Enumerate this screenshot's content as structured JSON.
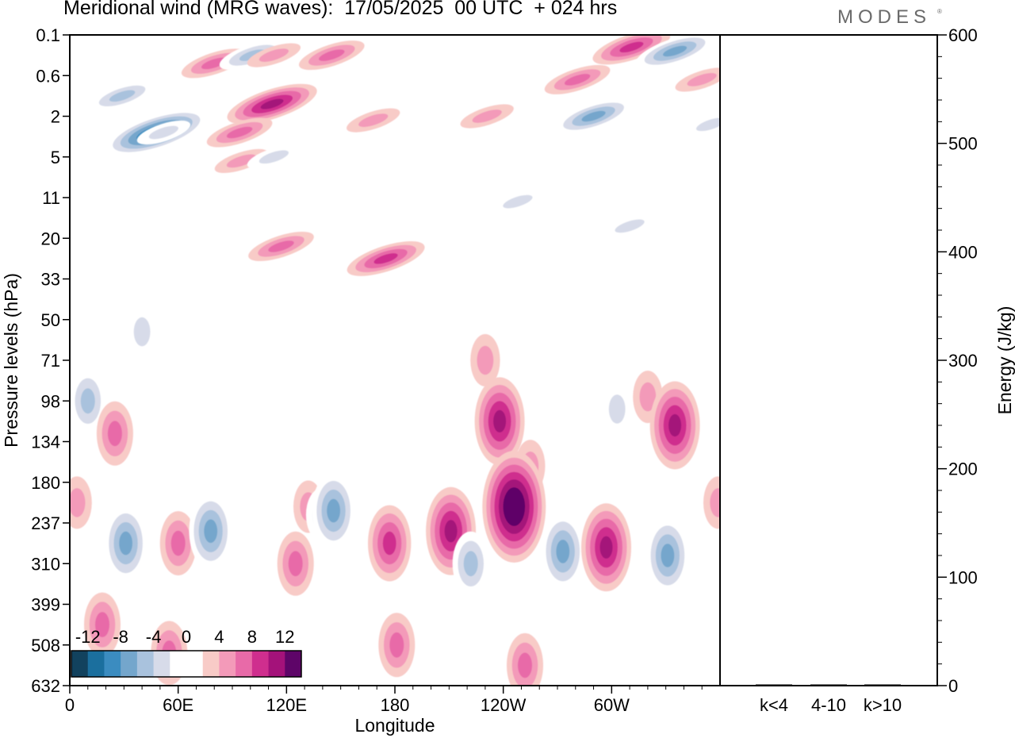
{
  "title": "Meridional wind (MRG waves):  17/05/2025  00 UTC  + 024 hrs",
  "brand": "MODES",
  "brand_mark": "®",
  "chart_data": [
    {
      "type": "heatmap",
      "title": "Meridional wind (MRG waves):  17/05/2025  00 UTC  + 024 hrs",
      "xlabel": "Longitude",
      "ylabel": "Pressure levels (hPa)",
      "x_ticks": [
        "0",
        "60E",
        "120E",
        "180",
        "120W",
        "60W"
      ],
      "x_tick_degrees": [
        0,
        60,
        120,
        180,
        240,
        300
      ],
      "xlim": [
        0,
        360
      ],
      "y_ticks": [
        "0.1",
        "0.6",
        "2",
        "5",
        "11",
        "20",
        "33",
        "50",
        "71",
        "98",
        "134",
        "180",
        "237",
        "310",
        "399",
        "508",
        "632"
      ],
      "colorbar": {
        "tick_labels": [
          "-12",
          "-8",
          "-4",
          "0",
          "4",
          "8",
          "12"
        ],
        "colors": [
          "#12425e",
          "#1b6f9e",
          "#3b8cc0",
          "#74a6cc",
          "#a9c2dd",
          "#d7dbe9",
          "#ffffff",
          "#ffffff",
          "#f8cbc7",
          "#f39ab9",
          "#e86aa8",
          "#cf2e8e",
          "#a4127a",
          "#5e0568"
        ]
      },
      "features": [
        {
          "lon": 29,
          "level": 1.5,
          "value": -6
        },
        {
          "lon": 48,
          "level": 2.4,
          "value": -12
        },
        {
          "lon": 52,
          "level": 2.4,
          "value": -4
        },
        {
          "lon": 80,
          "level": 0.7,
          "value": 5
        },
        {
          "lon": 101,
          "level": 0.5,
          "value": -6
        },
        {
          "lon": 113,
          "level": 0.5,
          "value": 4
        },
        {
          "lon": 112,
          "level": 1.7,
          "value": 9
        },
        {
          "lon": 94,
          "level": 2.4,
          "value": 6
        },
        {
          "lon": 145,
          "level": 0.5,
          "value": 5
        },
        {
          "lon": 95,
          "level": 3.1,
          "value": 4
        },
        {
          "lon": 113,
          "level": 3.0,
          "value": -4
        },
        {
          "lon": 117,
          "level": 5.2,
          "value": 5
        },
        {
          "lon": 175,
          "level": 5.5,
          "value": 7
        },
        {
          "lon": 168,
          "level": 2.1,
          "value": 3
        },
        {
          "lon": 231,
          "level": 2.0,
          "value": 4
        },
        {
          "lon": 281,
          "level": 1.1,
          "value": 5
        },
        {
          "lon": 311,
          "level": 0.3,
          "value": 8
        },
        {
          "lon": 290,
          "level": 2.0,
          "value": -7
        },
        {
          "lon": 335,
          "level": 0.4,
          "value": -7
        },
        {
          "lon": 350,
          "level": 1.1,
          "value": 4
        },
        {
          "lon": 355,
          "level": 2.2,
          "value": -3
        },
        {
          "lon": 248,
          "level": 4.1,
          "value": -3
        },
        {
          "lon": 310,
          "level": 4.7,
          "value": -3
        },
        {
          "lon": 230,
          "level": 8.0,
          "value": 3
        },
        {
          "lon": 320,
          "level": 8.9,
          "value": 3
        },
        {
          "lon": 40,
          "level": 7.3,
          "value": -3
        },
        {
          "lon": 255,
          "level": 10.6,
          "value": 3
        },
        {
          "lon": 10,
          "level": 9.0,
          "value": -6
        },
        {
          "lon": 25,
          "level": 9.8,
          "value": 5
        },
        {
          "lon": 132,
          "level": 11.6,
          "value": 4
        },
        {
          "lon": 238,
          "level": 9.5,
          "value": 10
        },
        {
          "lon": 335,
          "level": 9.6,
          "value": 9
        },
        {
          "lon": 303,
          "level": 9.2,
          "value": -3
        },
        {
          "lon": 4,
          "level": 11.5,
          "value": 4
        },
        {
          "lon": 31,
          "level": 12.5,
          "value": -7
        },
        {
          "lon": 60,
          "level": 12.5,
          "value": 6
        },
        {
          "lon": 78,
          "level": 12.2,
          "value": -8
        },
        {
          "lon": 125,
          "level": 13.0,
          "value": 5
        },
        {
          "lon": 139,
          "level": 11.8,
          "value": -3
        },
        {
          "lon": 146,
          "level": 11.7,
          "value": -7
        },
        {
          "lon": 177,
          "level": 12.5,
          "value": 7
        },
        {
          "lon": 207,
          "level": 12.3,
          "value": -6
        },
        {
          "lon": 211,
          "level": 12.2,
          "value": 10
        },
        {
          "lon": 222,
          "level": 13.0,
          "value": -5
        },
        {
          "lon": 246,
          "level": 11.6,
          "value": 14
        },
        {
          "lon": 273,
          "level": 12.7,
          "value": -8
        },
        {
          "lon": 297,
          "level": 12.6,
          "value": 9
        },
        {
          "lon": 331,
          "level": 12.8,
          "value": -8
        },
        {
          "lon": 359,
          "level": 11.5,
          "value": 4
        },
        {
          "lon": 18,
          "level": 14.5,
          "value": 5
        },
        {
          "lon": 55,
          "level": 15.2,
          "value": 6
        },
        {
          "lon": 181,
          "level": 15.0,
          "value": 6
        },
        {
          "lon": 252,
          "level": 15.5,
          "value": 6
        }
      ]
    },
    {
      "type": "bar",
      "ylabel": "Energy (J/kg)",
      "categories": [
        "k<4",
        "4-10",
        "k>10"
      ],
      "values": [
        0,
        0.5,
        0
      ],
      "ylim": [
        0,
        600
      ],
      "y_ticks": [
        "0",
        "100",
        "200",
        "300",
        "400",
        "500",
        "600"
      ]
    }
  ]
}
